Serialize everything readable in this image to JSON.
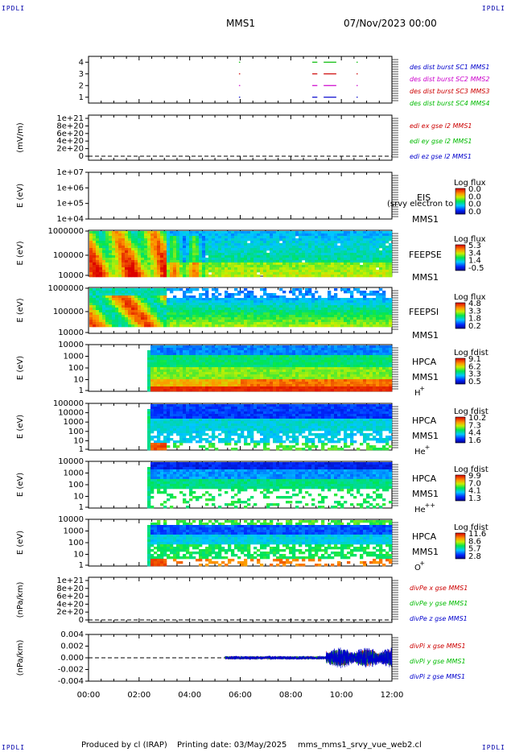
{
  "header": {
    "corner_label": "IPDLI",
    "mission": "MMS1",
    "datetime": "07/Nov/2023 00:00"
  },
  "footer": {
    "produced_by": "Produced by cl (IRAP)",
    "printing_date": "Printing date: 03/May/2025",
    "script": "mms_mms1_srvy_vue_web2.cl"
  },
  "colors": {
    "mms1": "#0000cc",
    "mms2": "#cc00cc",
    "mms3": "#cc0000",
    "mms4": "#00bb00",
    "x": "#cc0000",
    "y": "#00bb00",
    "z": "#0000cc"
  },
  "chart_data": [
    {
      "type": "scatter",
      "panel": "burst",
      "xlim": [
        0,
        12
      ],
      "ylim": [
        0.5,
        4.5
      ],
      "yticks": [
        "1",
        "2",
        "3",
        "4"
      ],
      "legend": [
        "des dist burst SC1 MMS1",
        "des dist burst SC2 MMS2",
        "des dist burst SC3 MMS3",
        "des dist burst SC4 MMS4"
      ],
      "series": [
        {
          "name": "des dist burst SC1 MMS1",
          "level": 1,
          "intervals": [
            [
              5.95,
              5.98
            ],
            [
              8.85,
              9.05
            ],
            [
              9.3,
              9.8
            ],
            [
              10.6,
              10.63
            ]
          ]
        },
        {
          "name": "des dist burst SC2 MMS2",
          "level": 2,
          "intervals": [
            [
              5.95,
              5.98
            ],
            [
              8.85,
              9.05
            ],
            [
              9.3,
              9.8
            ],
            [
              10.6,
              10.63
            ]
          ]
        },
        {
          "name": "des dist burst SC3 MMS3",
          "level": 3,
          "intervals": [
            [
              5.95,
              5.98
            ],
            [
              8.85,
              9.05
            ],
            [
              9.3,
              9.8
            ],
            [
              10.6,
              10.63
            ]
          ]
        },
        {
          "name": "des dist burst SC4 MMS4",
          "level": 4,
          "intervals": [
            [
              5.95,
              5.98
            ],
            [
              8.85,
              9.05
            ],
            [
              9.3,
              9.8
            ],
            [
              10.6,
              10.63
            ]
          ]
        }
      ]
    },
    {
      "type": "line",
      "panel": "edi",
      "ylabel": "(mV/m)",
      "yticks": [
        "0",
        "2e+20",
        "4e+20",
        "6e+20",
        "8e+20",
        "1e+21"
      ],
      "ylim": [
        0,
        1e+21
      ],
      "legend": [
        "edi ex gse l2 MMS1",
        "edi ey gse l2 MMS1",
        "edi ez gse l2 MMS1"
      ],
      "zero_line": true
    },
    {
      "type": "heatmap",
      "panel": "eis",
      "ylabel": "E (eV)",
      "yscale": "log",
      "yticks": [
        "1e+04",
        "1e+05",
        "1e+06",
        "1e+07"
      ],
      "side_labels": [
        "EIS",
        "MMS1"
      ],
      "overlay_text": "(srvy electron to",
      "colorbar_title": "Log flux",
      "colorbar_ticks": [
        "0.0",
        "0.0",
        "0.0",
        "0.0"
      ]
    },
    {
      "type": "heatmap",
      "panel": "feepse",
      "ylabel": "E (eV)",
      "yscale": "log",
      "yticks": [
        "10000",
        "100000",
        "1000000"
      ],
      "side_labels": [
        "FEEPSE",
        "MMS1"
      ],
      "colorbar_title": "Log flux",
      "colorbar_ticks": [
        "5.3",
        "3.4",
        "1.4",
        "-0.5"
      ]
    },
    {
      "type": "heatmap",
      "panel": "feepsi",
      "ylabel": "E (eV)",
      "yscale": "log",
      "yticks": [
        "10000",
        "100000",
        "1000000"
      ],
      "side_labels": [
        "FEEPSI",
        "MMS1"
      ],
      "colorbar_title": "Log flux",
      "colorbar_ticks": [
        "4.8",
        "3.3",
        "1.8",
        "0.2"
      ]
    },
    {
      "type": "heatmap",
      "panel": "hpca_h",
      "ylabel": "E (eV)",
      "yscale": "log",
      "yticks": [
        "1",
        "10",
        "100",
        "1000",
        "10000"
      ],
      "side_labels": [
        "HPCA",
        "MMS1",
        "H",
        "+"
      ],
      "colorbar_title": "Log fdist",
      "colorbar_ticks": [
        "9.1",
        "6.2",
        "3.3",
        "0.5"
      ]
    },
    {
      "type": "heatmap",
      "panel": "hpca_he",
      "ylabel": "E (eV)",
      "yscale": "log",
      "yticks": [
        "1",
        "10",
        "100",
        "1000",
        "10000",
        "100000"
      ],
      "side_labels": [
        "HPCA",
        "MMS1",
        "He",
        "+"
      ],
      "colorbar_title": "Log fdist",
      "colorbar_ticks": [
        "10.2",
        "7.3",
        "4.4",
        "1.6"
      ]
    },
    {
      "type": "heatmap",
      "panel": "hpca_hepp",
      "ylabel": "E (eV)",
      "yscale": "log",
      "yticks": [
        "1",
        "10",
        "100",
        "1000",
        "10000"
      ],
      "side_labels": [
        "HPCA",
        "MMS1",
        "He",
        "++"
      ],
      "colorbar_title": "Log fdist",
      "colorbar_ticks": [
        "9.9",
        "7.0",
        "4.1",
        "1.3"
      ]
    },
    {
      "type": "heatmap",
      "panel": "hpca_o",
      "ylabel": "E (eV)",
      "yscale": "log",
      "yticks": [
        "1",
        "10",
        "100",
        "1000",
        "10000"
      ],
      "side_labels": [
        "HPCA",
        "MMS1",
        "O",
        "+"
      ],
      "colorbar_title": "Log fdist",
      "colorbar_ticks": [
        "11.6",
        "8.6",
        "5.7",
        "2.8"
      ]
    },
    {
      "type": "line",
      "panel": "divpe",
      "ylabel": "(nPa/km)",
      "yticks": [
        "0",
        "2e+20",
        "4e+20",
        "6e+20",
        "8e+20",
        "1e+21"
      ],
      "ylim": [
        0,
        1e+21
      ],
      "legend": [
        "divPe x gse MMS1",
        "divPe y gse MMS1",
        "divPe z gse MMS1"
      ],
      "zero_line": true
    },
    {
      "type": "line",
      "panel": "divpi",
      "ylabel": "(nPa/km)",
      "yticks": [
        "-0.004",
        "-0.002",
        "0.000",
        "0.002",
        "0.004"
      ],
      "ylim": [
        -0.004,
        0.004
      ],
      "legend": [
        "divPi x gse MMS1",
        "divPi y gse MMS1",
        "divPi z gse MMS1"
      ],
      "zero_line": true,
      "x": [
        "00:00",
        "02:00",
        "04:00",
        "06:00",
        "08:00",
        "10:00",
        "12:00"
      ],
      "xlim": [
        0,
        12
      ],
      "segments": [
        {
          "t": [
            5.4,
            9.4
          ],
          "amplitude": 0.0003
        },
        {
          "t": [
            9.4,
            12.0
          ],
          "amplitude": 0.0015
        }
      ]
    }
  ]
}
